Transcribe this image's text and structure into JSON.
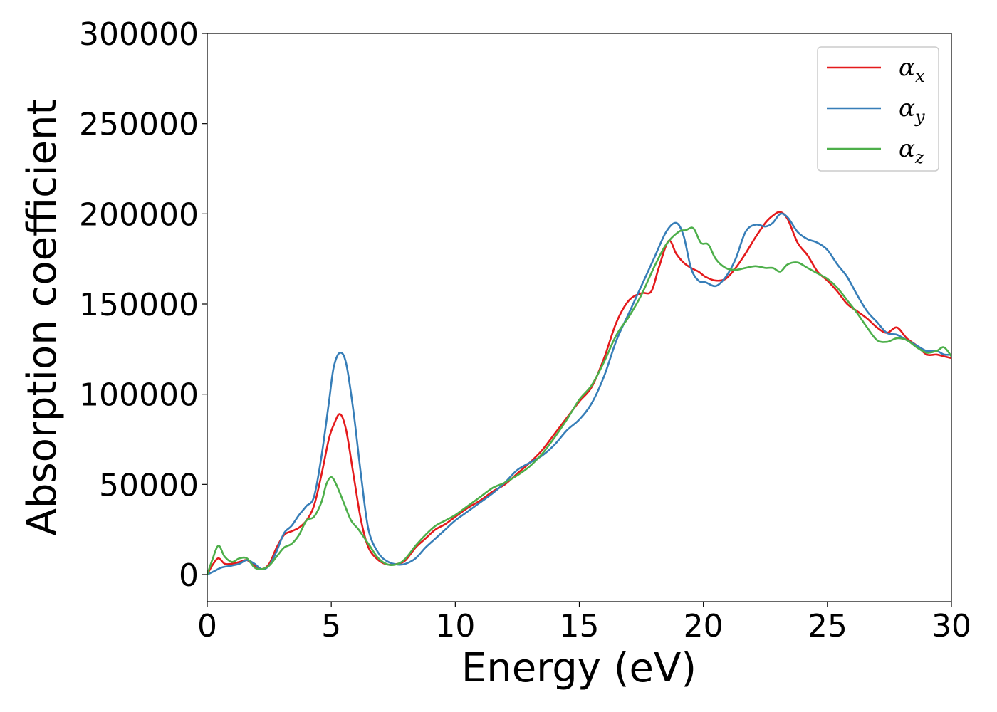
{
  "chart_data": {
    "type": "line",
    "xlabel": "Energy (eV)",
    "ylabel": "Absorption coefficient",
    "xlim": [
      0,
      30
    ],
    "ylim": [
      -15000,
      300000
    ],
    "xticks": [
      0,
      5,
      10,
      15,
      20,
      25,
      30
    ],
    "xtick_labels": [
      "0",
      "5",
      "10",
      "15",
      "20",
      "25",
      "30"
    ],
    "yticks": [
      0,
      50000,
      100000,
      150000,
      200000,
      250000,
      300000
    ],
    "ytick_labels": [
      "0",
      "50000",
      "100000",
      "150000",
      "200000",
      "250000",
      "300000"
    ],
    "grid": false,
    "legend_position": "top-right",
    "series": [
      {
        "name": "α",
        "subscript": "x",
        "color": "#e41a1c",
        "x": [
          0,
          0.2,
          0.45,
          0.7,
          1.0,
          1.3,
          1.6,
          1.9,
          2.2,
          2.5,
          2.8,
          3.1,
          3.4,
          3.7,
          4.0,
          4.3,
          4.6,
          4.9,
          5.1,
          5.35,
          5.6,
          5.9,
          6.2,
          6.5,
          6.9,
          7.3,
          7.7,
          8.0,
          8.4,
          8.8,
          9.2,
          9.6,
          10.0,
          10.5,
          11.0,
          11.5,
          12.0,
          12.5,
          13.0,
          13.5,
          14.0,
          14.5,
          15.0,
          15.5,
          16.0,
          16.5,
          17.0,
          17.5,
          17.9,
          18.2,
          18.6,
          18.9,
          19.2,
          19.5,
          19.8,
          20.1,
          20.5,
          20.9,
          21.3,
          21.7,
          22.1,
          22.5,
          22.8,
          23.1,
          23.4,
          23.8,
          24.2,
          24.6,
          25.0,
          25.4,
          25.8,
          26.2,
          26.6,
          27.0,
          27.4,
          27.8,
          28.2,
          28.6,
          29.0,
          29.4,
          29.7,
          30.0
        ],
        "y": [
          0,
          5000,
          9000,
          6000,
          6000,
          7000,
          8000,
          5000,
          3000,
          6000,
          15000,
          22000,
          24000,
          26000,
          30000,
          38000,
          55000,
          75000,
          83000,
          89000,
          80000,
          55000,
          30000,
          15000,
          8000,
          5500,
          6000,
          8000,
          15000,
          20000,
          25000,
          28000,
          32000,
          37000,
          41000,
          46000,
          50000,
          56000,
          62000,
          69000,
          78000,
          87000,
          96000,
          104000,
          120000,
          140000,
          152000,
          156000,
          157000,
          170000,
          185000,
          178000,
          173000,
          170000,
          168000,
          165000,
          163000,
          164000,
          170000,
          178000,
          187000,
          195000,
          199000,
          201000,
          197000,
          184000,
          177000,
          168000,
          163000,
          157000,
          150000,
          146000,
          142000,
          137000,
          134000,
          137000,
          131000,
          127000,
          122000,
          122000,
          121000,
          120000
        ]
      },
      {
        "name": "α",
        "subscript": "y",
        "color": "#377eb8",
        "x": [
          0,
          0.3,
          0.6,
          1.0,
          1.3,
          1.6,
          1.9,
          2.2,
          2.5,
          2.8,
          3.1,
          3.4,
          3.7,
          4.0,
          4.3,
          4.6,
          4.9,
          5.1,
          5.35,
          5.6,
          5.9,
          6.2,
          6.5,
          6.9,
          7.3,
          7.7,
          8.0,
          8.4,
          8.8,
          9.2,
          9.6,
          10.0,
          10.5,
          11.0,
          11.5,
          12.0,
          12.5,
          13.0,
          13.5,
          14.0,
          14.5,
          15.0,
          15.5,
          16.0,
          16.5,
          17.0,
          17.5,
          18.0,
          18.5,
          18.9,
          19.2,
          19.5,
          19.8,
          20.1,
          20.5,
          20.9,
          21.3,
          21.7,
          22.1,
          22.5,
          22.8,
          23.1,
          23.4,
          23.8,
          24.2,
          24.6,
          25.0,
          25.4,
          25.8,
          26.2,
          26.6,
          27.0,
          27.4,
          27.8,
          28.2,
          28.6,
          29.0,
          29.4,
          29.7,
          30.0
        ],
        "y": [
          0,
          2000,
          4000,
          5000,
          6000,
          8000,
          6000,
          3000,
          5000,
          13000,
          23000,
          27000,
          33000,
          38000,
          43000,
          65000,
          95000,
          115000,
          123000,
          117000,
          90000,
          55000,
          25000,
          12000,
          7000,
          5500,
          6000,
          9000,
          15000,
          20000,
          25000,
          30000,
          35000,
          40000,
          45000,
          51000,
          58000,
          62000,
          66000,
          72000,
          80000,
          86000,
          95000,
          110000,
          130000,
          145000,
          160000,
          175000,
          190000,
          195000,
          188000,
          170000,
          163000,
          162000,
          160000,
          165000,
          175000,
          190000,
          194000,
          193000,
          195000,
          200000,
          198000,
          190000,
          186000,
          184000,
          180000,
          172000,
          165000,
          155000,
          146000,
          140000,
          134000,
          133000,
          130000,
          127000,
          124000,
          124000,
          122000,
          122000
        ]
      },
      {
        "name": "α",
        "subscript": "z",
        "color": "#4daf4a",
        "x": [
          0,
          0.2,
          0.45,
          0.7,
          1.0,
          1.3,
          1.6,
          1.9,
          2.2,
          2.5,
          2.8,
          3.1,
          3.4,
          3.7,
          4.0,
          4.3,
          4.6,
          4.8,
          5.0,
          5.2,
          5.5,
          5.8,
          6.1,
          6.5,
          6.9,
          7.3,
          7.7,
          8.0,
          8.4,
          8.8,
          9.2,
          9.6,
          10.0,
          10.5,
          11.0,
          11.5,
          12.0,
          12.5,
          13.0,
          13.5,
          14.0,
          14.5,
          15.0,
          15.5,
          16.0,
          16.5,
          17.0,
          17.5,
          18.0,
          18.5,
          19.0,
          19.3,
          19.6,
          19.9,
          20.2,
          20.5,
          20.9,
          21.3,
          21.7,
          22.1,
          22.5,
          22.8,
          23.1,
          23.4,
          23.8,
          24.2,
          24.6,
          25.0,
          25.4,
          25.8,
          26.2,
          26.6,
          27.0,
          27.4,
          27.8,
          28.2,
          28.6,
          29.0,
          29.4,
          29.7,
          30.0
        ],
        "y": [
          0,
          8000,
          16000,
          10000,
          7000,
          9000,
          9000,
          4000,
          3000,
          5000,
          10000,
          15000,
          17000,
          22000,
          30000,
          32000,
          40000,
          50000,
          54000,
          50000,
          40000,
          30000,
          25000,
          17000,
          9000,
          5500,
          6000,
          9000,
          16000,
          22000,
          27000,
          30000,
          33000,
          38000,
          43000,
          48000,
          51000,
          55000,
          60000,
          67000,
          76000,
          86000,
          97000,
          105000,
          118000,
          133000,
          143000,
          155000,
          170000,
          183000,
          190000,
          191000,
          192000,
          184000,
          183000,
          175000,
          170000,
          169000,
          170000,
          171000,
          170000,
          170000,
          168000,
          172000,
          173000,
          170000,
          167000,
          164000,
          159000,
          152000,
          145000,
          137000,
          130000,
          129000,
          131000,
          130000,
          126000,
          123000,
          124000,
          126000,
          121000
        ]
      }
    ]
  }
}
